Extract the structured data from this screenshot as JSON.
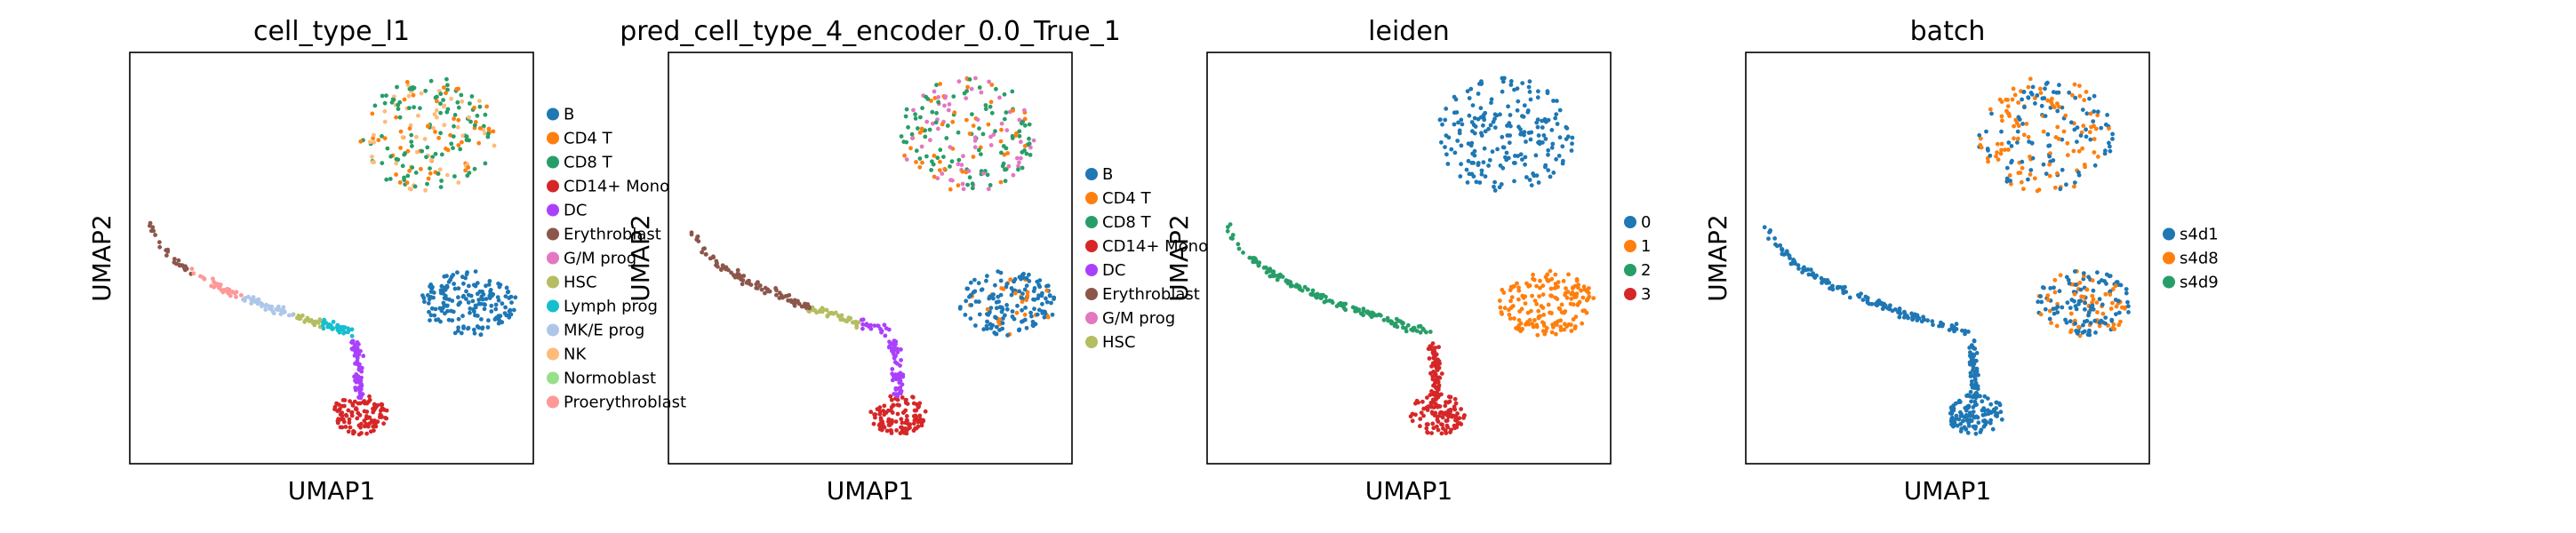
{
  "chart_data": [
    {
      "type": "scatter",
      "title": "cell_type_l1",
      "xlabel": "UMAP1",
      "ylabel": "UMAP2",
      "legend_position": "right",
      "legend": [
        {
          "label": "B",
          "color": "#1f77b4"
        },
        {
          "label": "CD4 T",
          "color": "#ff7f0e"
        },
        {
          "label": "CD8 T",
          "color": "#279e68"
        },
        {
          "label": "CD14+ Mono",
          "color": "#d62728"
        },
        {
          "label": "DC",
          "color": "#aa40fc"
        },
        {
          "label": "Erythroblast",
          "color": "#8c564b"
        },
        {
          "label": "G/M prog",
          "color": "#e377c2"
        },
        {
          "label": "HSC",
          "color": "#b5bd61"
        },
        {
          "label": "Lymph prog",
          "color": "#17becf"
        },
        {
          "label": "MK/E prog",
          "color": "#aec7e8"
        },
        {
          "label": "NK",
          "color": "#ffbb78"
        },
        {
          "label": "Normoblast",
          "color": "#98df8a"
        },
        {
          "label": "Proerythroblast",
          "color": "#ff9896"
        }
      ]
    },
    {
      "type": "scatter",
      "title": "pred_cell_type_4_encoder_0.0_True_1",
      "xlabel": "UMAP1",
      "ylabel": "UMAP2",
      "legend_position": "right",
      "legend": [
        {
          "label": "B",
          "color": "#1f77b4"
        },
        {
          "label": "CD4 T",
          "color": "#ff7f0e"
        },
        {
          "label": "CD8 T",
          "color": "#279e68"
        },
        {
          "label": "CD14+ Mono",
          "color": "#d62728"
        },
        {
          "label": "DC",
          "color": "#aa40fc"
        },
        {
          "label": "Erythroblast",
          "color": "#8c564b"
        },
        {
          "label": "G/M prog",
          "color": "#e377c2"
        },
        {
          "label": "HSC",
          "color": "#b5bd61"
        }
      ]
    },
    {
      "type": "scatter",
      "title": "leiden",
      "xlabel": "UMAP1",
      "ylabel": "UMAP2",
      "legend_position": "right",
      "legend": [
        {
          "label": "0",
          "color": "#1f77b4"
        },
        {
          "label": "1",
          "color": "#ff7f0e"
        },
        {
          "label": "2",
          "color": "#279e68"
        },
        {
          "label": "3",
          "color": "#d62728"
        }
      ]
    },
    {
      "type": "scatter",
      "title": "batch",
      "xlabel": "UMAP1",
      "ylabel": "UMAP2",
      "legend_position": "right",
      "legend": [
        {
          "label": "s4d1",
          "color": "#1f77b4"
        },
        {
          "label": "s4d8",
          "color": "#ff7f0e"
        },
        {
          "label": "s4d9",
          "color": "#279e68"
        }
      ]
    }
  ]
}
